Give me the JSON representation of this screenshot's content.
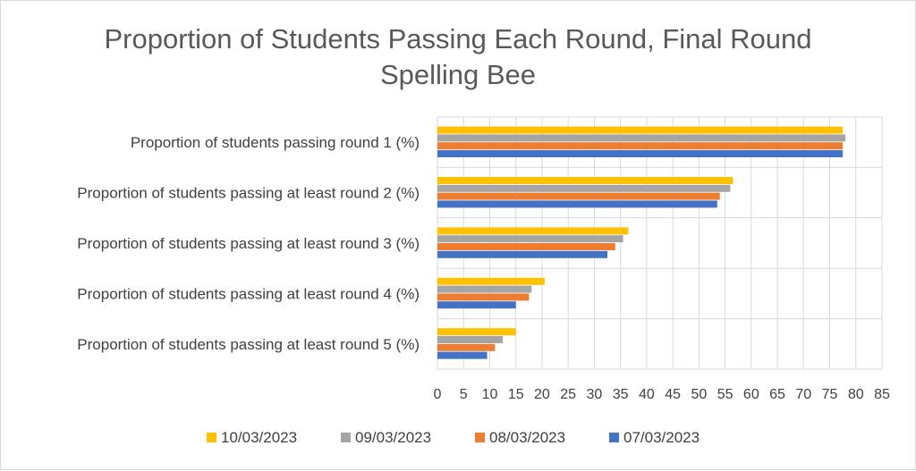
{
  "chart_data": {
    "type": "bar",
    "orientation": "horizontal",
    "title_lines": [
      "Proportion of Students Passing Each Round, Final Round",
      "Spelling Bee"
    ],
    "categories": [
      "Proportion of students passing round 1 (%)",
      "Proportion of students passing at least round 2 (%)",
      "Proportion of students passing at least round 3 (%)",
      "Proportion of students passing at least round 4 (%)",
      "Proportion of students passing at least round 5 (%)"
    ],
    "series": [
      {
        "name": "10/03/2023",
        "color": "#FFC000",
        "values": [
          77.5,
          56.5,
          36.5,
          20.5,
          15
        ]
      },
      {
        "name": "09/03/2023",
        "color": "#A5A5A5",
        "values": [
          78,
          56,
          35.5,
          18,
          12.5
        ]
      },
      {
        "name": "08/03/2023",
        "color": "#ED7D31",
        "values": [
          77.5,
          54,
          34,
          17.5,
          11
        ]
      },
      {
        "name": "07/03/2023",
        "color": "#4472C4",
        "values": [
          77.5,
          53.5,
          32.5,
          15,
          9.5
        ]
      }
    ],
    "x_ticks": [
      "0",
      "5",
      "10",
      "15",
      "20",
      "25",
      "30",
      "35",
      "40",
      "45",
      "50",
      "55",
      "60",
      "65",
      "70",
      "75",
      "80",
      "85"
    ],
    "xlim": [
      0,
      85
    ],
    "grid": true,
    "legend_position": "bottom"
  }
}
